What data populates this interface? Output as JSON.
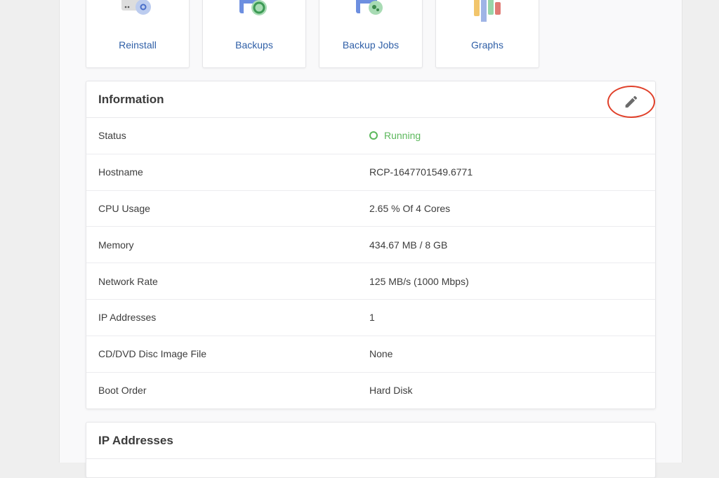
{
  "tiles": [
    {
      "label": "Reinstall",
      "icon": "reinstall-icon"
    },
    {
      "label": "Backups",
      "icon": "backups-icon"
    },
    {
      "label": "Backup Jobs",
      "icon": "backup-jobs-icon"
    },
    {
      "label": "Graphs",
      "icon": "graphs-icon"
    }
  ],
  "information": {
    "title": "Information",
    "edit_icon": "pencil-icon",
    "rows": [
      {
        "key": "Status",
        "value": "Running",
        "status_color": "#5cb85c"
      },
      {
        "key": "Hostname",
        "value": "RCP-1647701549.6771"
      },
      {
        "key": "CPU Usage",
        "value": "2.65 % Of 4 Cores"
      },
      {
        "key": "Memory",
        "value": "434.67 MB / 8 GB"
      },
      {
        "key": "Network Rate",
        "value": "125 MB/s (1000 Mbps)"
      },
      {
        "key": "IP Addresses",
        "value": "1"
      },
      {
        "key": "CD/DVD Disc Image File",
        "value": "None"
      },
      {
        "key": "Boot Order",
        "value": "Hard Disk"
      }
    ]
  },
  "ip_addresses": {
    "title": "IP Addresses"
  }
}
